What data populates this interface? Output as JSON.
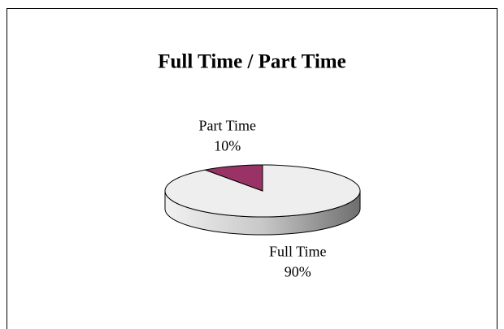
{
  "chart_data": {
    "type": "pie3d",
    "title": "Full Time / Part Time",
    "categories": [
      "Full Time",
      "Part Time"
    ],
    "values": [
      90,
      10
    ],
    "value_labels": [
      "90%",
      "10%"
    ],
    "colors": [
      "#eeeeee",
      "#993366"
    ]
  }
}
